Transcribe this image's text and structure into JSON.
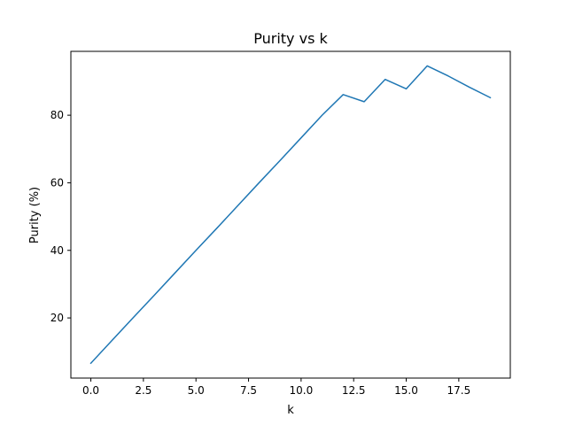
{
  "chart_data": {
    "type": "line",
    "title": "Purity vs k",
    "xlabel": "k",
    "ylabel": "Purity (%)",
    "xlim": [
      -0.95,
      19.95
    ],
    "ylim": [
      2.2,
      98.9
    ],
    "x_ticks": [
      0,
      2.5,
      5,
      7.5,
      10,
      12.5,
      15,
      17.5
    ],
    "x_tick_labels": [
      "0.0",
      "2.5",
      "5.0",
      "7.5",
      "10.0",
      "12.5",
      "15.0",
      "17.5"
    ],
    "y_ticks": [
      20,
      40,
      60,
      80
    ],
    "y_tick_labels": [
      "20",
      "40",
      "60",
      "80"
    ],
    "grid": false,
    "legend": null,
    "series": [
      {
        "color": "#1f77b4",
        "x": [
          0,
          1,
          2,
          3,
          4,
          5,
          6,
          7,
          8,
          9,
          10,
          11,
          12,
          13,
          14,
          15,
          16,
          17,
          18,
          19
        ],
        "y": [
          6.6,
          13.3,
          20.0,
          26.6,
          33.3,
          40.0,
          46.6,
          53.3,
          60.0,
          66.6,
          73.3,
          80.0,
          86.1,
          84.0,
          90.6,
          87.8,
          94.6,
          91.6,
          88.3,
          85.2
        ]
      }
    ]
  }
}
